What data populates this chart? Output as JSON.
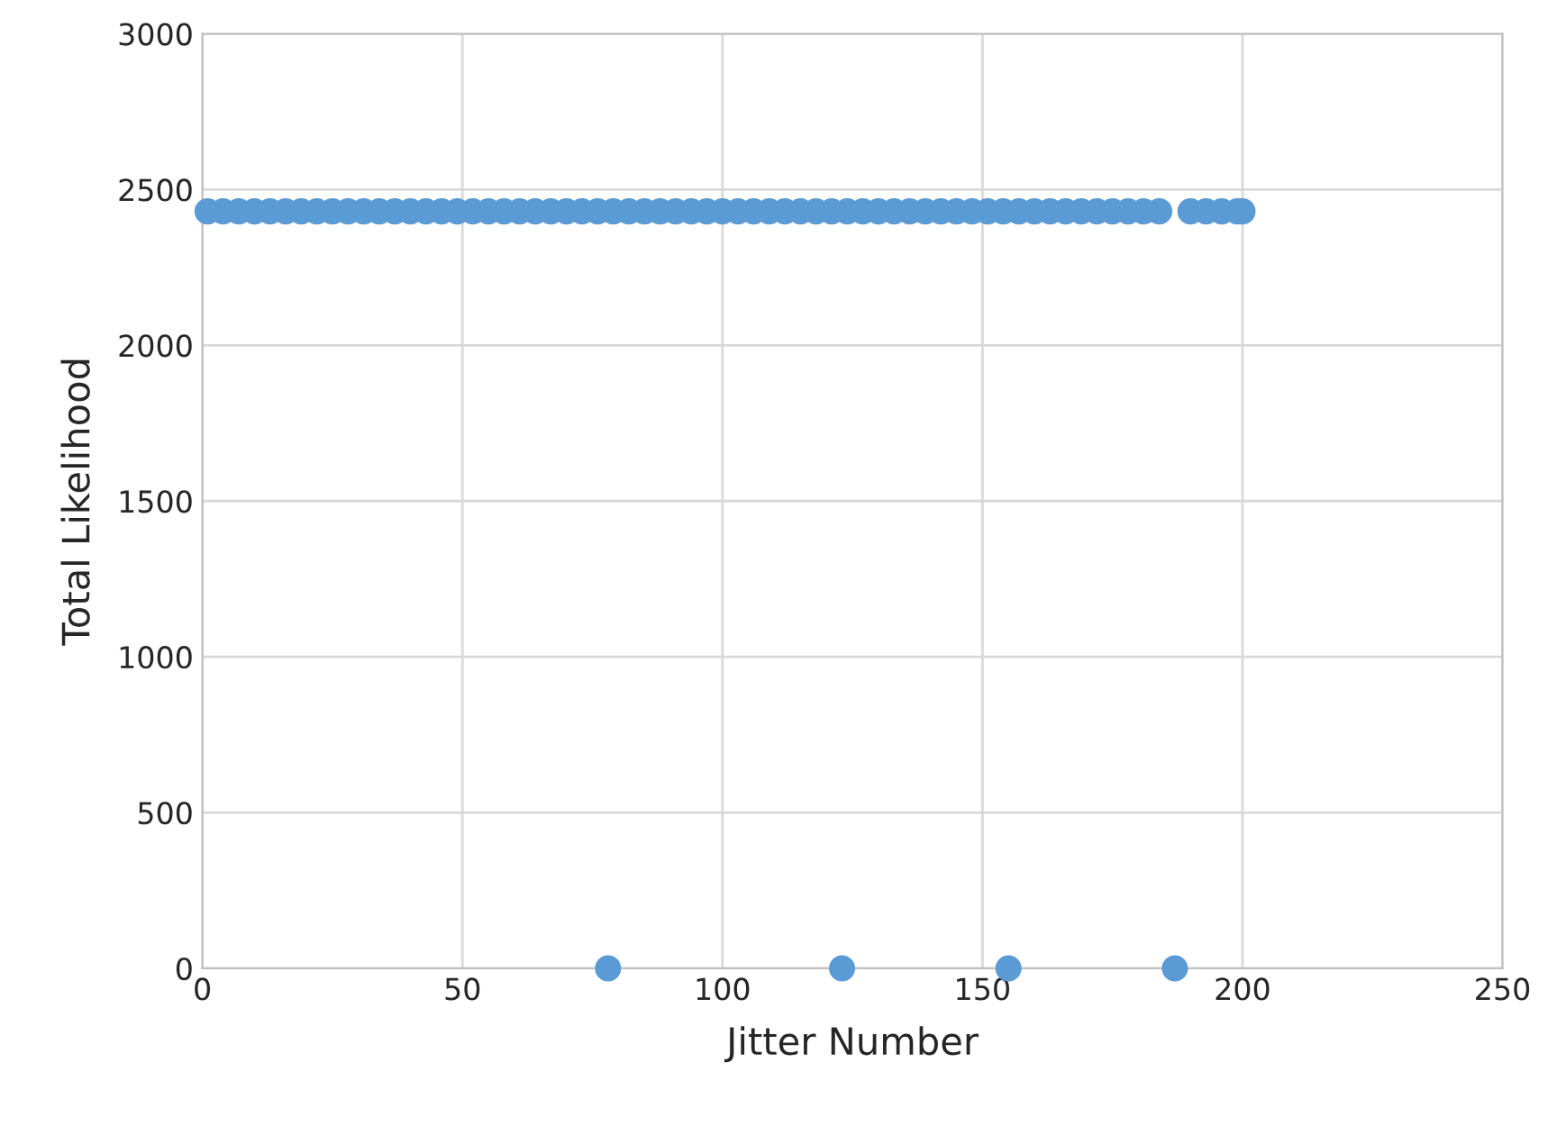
{
  "chart_data": {
    "type": "scatter",
    "xlabel": "Jitter Number",
    "ylabel": "Total Likelihood",
    "x": [
      1,
      4,
      7,
      10,
      13,
      16,
      19,
      22,
      25,
      28,
      31,
      34,
      37,
      40,
      43,
      46,
      49,
      52,
      55,
      58,
      61,
      64,
      67,
      70,
      73,
      76,
      78,
      79,
      82,
      85,
      88,
      91,
      94,
      97,
      100,
      103,
      106,
      109,
      112,
      115,
      118,
      121,
      123,
      124,
      127,
      130,
      133,
      136,
      139,
      142,
      145,
      148,
      151,
      154,
      155,
      157,
      160,
      163,
      166,
      169,
      172,
      175,
      178,
      181,
      184,
      187,
      190,
      193,
      196,
      199,
      200
    ],
    "series": [
      {
        "color": "#5b9bd5",
        "values": [
          2430,
          2430,
          2430,
          2430,
          2430,
          2430,
          2430,
          2430,
          2430,
          2430,
          2430,
          2430,
          2430,
          2430,
          2430,
          2430,
          2430,
          2430,
          2430,
          2430,
          2430,
          2430,
          2430,
          2430,
          2430,
          2430,
          0,
          2430,
          2430,
          2430,
          2430,
          2430,
          2430,
          2430,
          2430,
          2430,
          2430,
          2430,
          2430,
          2430,
          2430,
          2430,
          0,
          2430,
          2430,
          2430,
          2430,
          2430,
          2430,
          2430,
          2430,
          2430,
          2430,
          2430,
          0,
          2430,
          2430,
          2430,
          2430,
          2430,
          2430,
          2430,
          2430,
          2430,
          2430,
          0,
          2430,
          2430,
          2430,
          2430,
          2430
        ]
      }
    ],
    "xlim": [
      0,
      250
    ],
    "xticks": [
      0,
      50,
      100,
      150,
      200,
      250
    ],
    "ylim": [
      0,
      3000
    ],
    "yticks": [
      0,
      500,
      1000,
      1500,
      2000,
      2500,
      3000
    ],
    "grid": true,
    "marker": "circle"
  }
}
